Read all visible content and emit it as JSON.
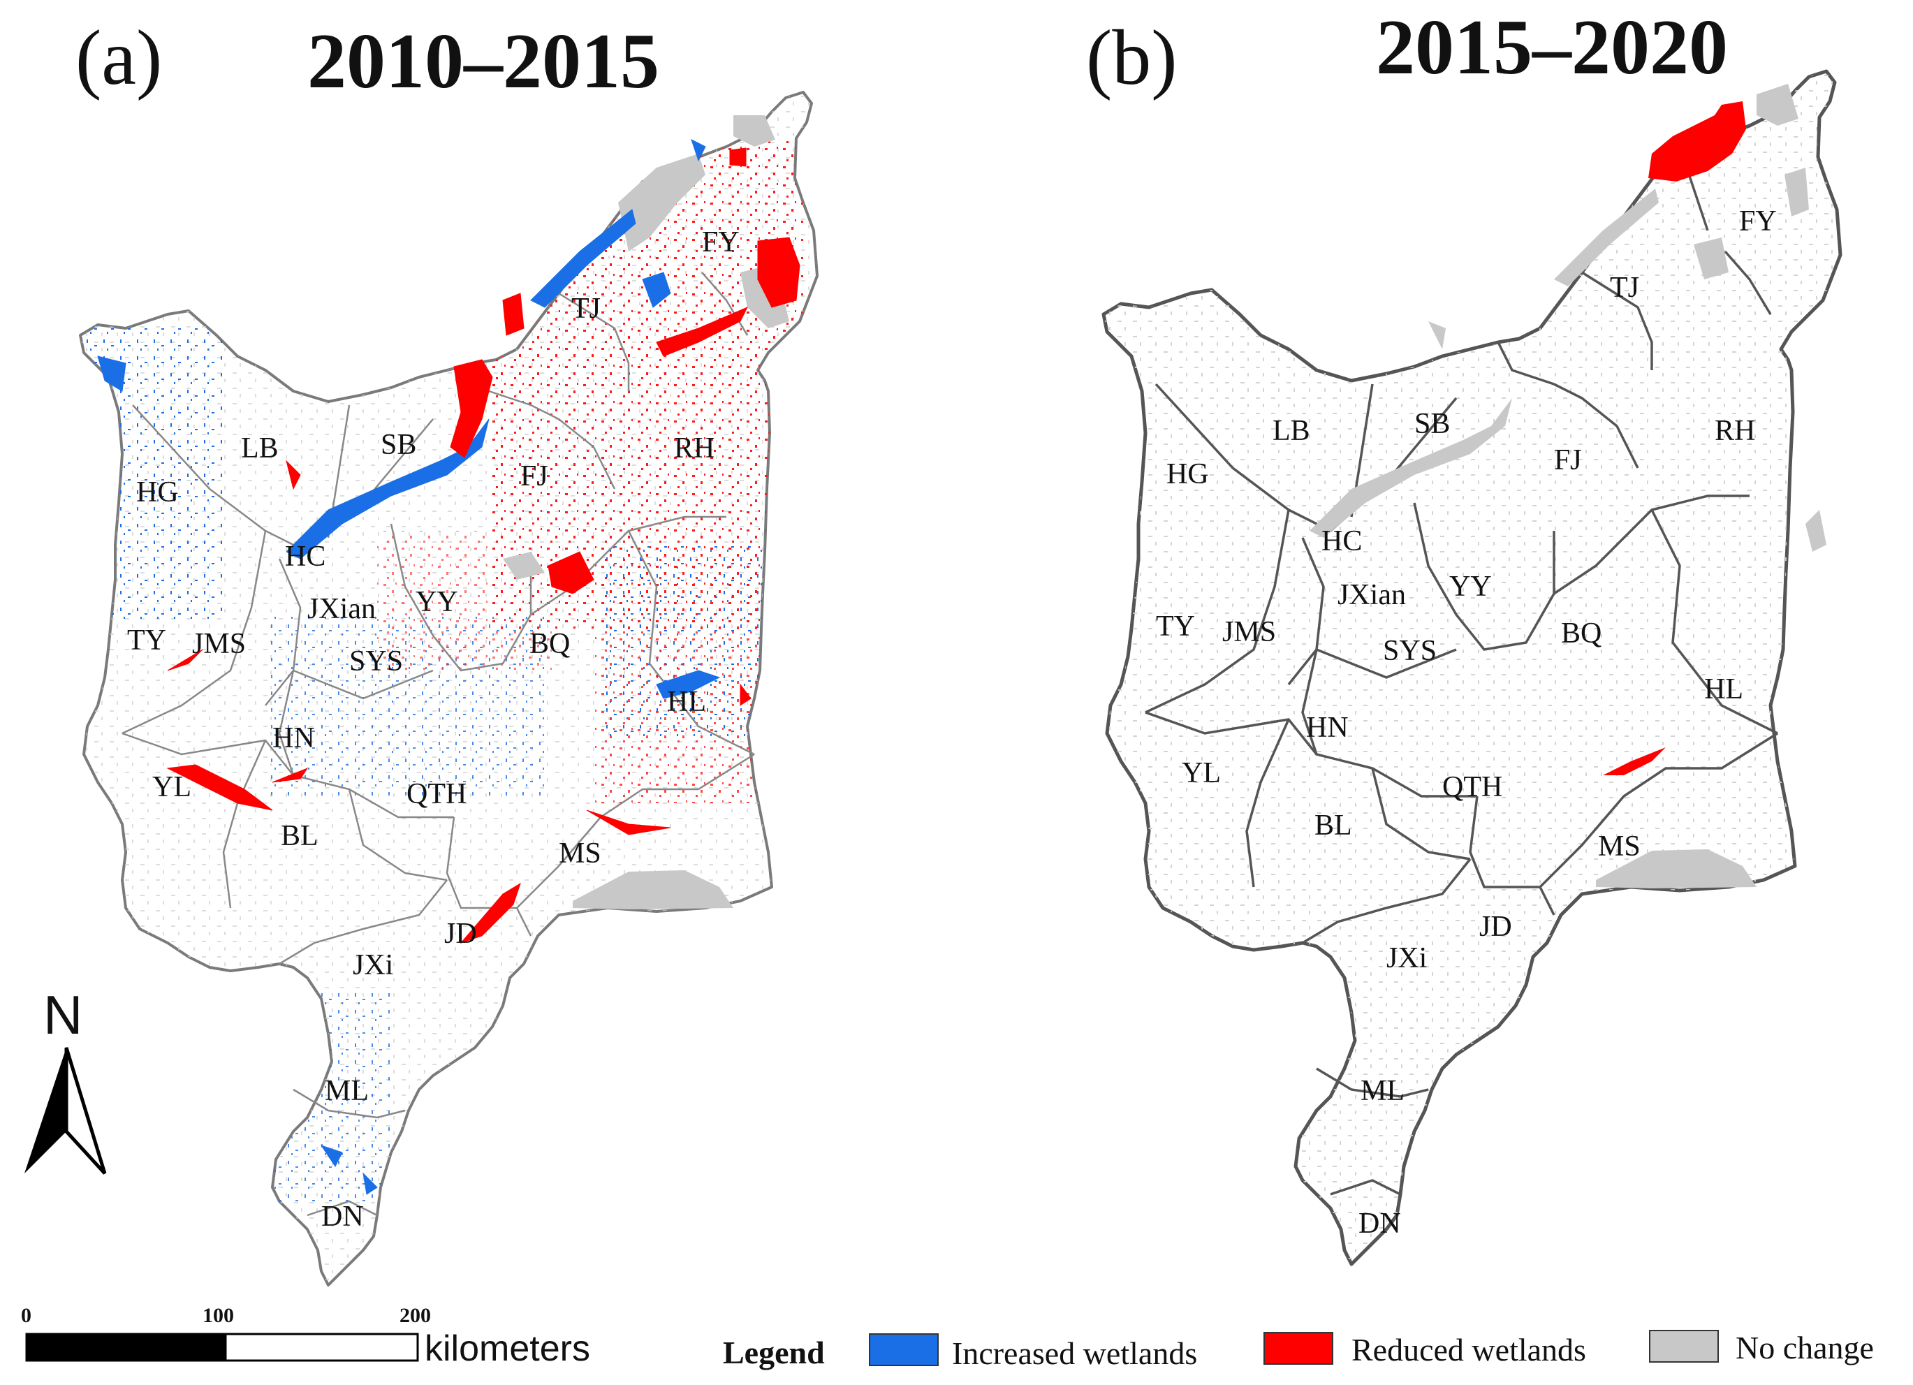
{
  "panels": [
    {
      "tag": "(a)",
      "title": "2010–2015",
      "labels": [
        "FY",
        "TJ",
        "SB",
        "LB",
        "HG",
        "RH",
        "FJ",
        "HC",
        "JXian",
        "YY",
        "TY",
        "JMS",
        "SYS",
        "BQ",
        "HL",
        "HN",
        "YL",
        "QTH",
        "BL",
        "MS",
        "JD",
        "JXi",
        "ML",
        "DN"
      ]
    },
    {
      "tag": "(b)",
      "title": "2015–2020",
      "labels": [
        "FY",
        "TJ",
        "LB",
        "SB",
        "RH",
        "HG",
        "FJ",
        "HC",
        "JXian",
        "YY",
        "TY",
        "JMS",
        "SYS",
        "BQ",
        "HL",
        "HN",
        "YL",
        "QTH",
        "BL",
        "MS",
        "JD",
        "JXi",
        "ML",
        "DN"
      ]
    }
  ],
  "north_arrow": {
    "letter": "N"
  },
  "scale_bar": {
    "ticks": [
      "0",
      "100",
      "200"
    ],
    "unit": "kilometers"
  },
  "legend": {
    "title": "Legend",
    "items": [
      {
        "label": "Increased wetlands",
        "color": "#1a6fe6"
      },
      {
        "label": "Reduced wetlands",
        "color": "#ff0000"
      },
      {
        "label": "No change",
        "color": "#c8c8c8"
      }
    ]
  }
}
